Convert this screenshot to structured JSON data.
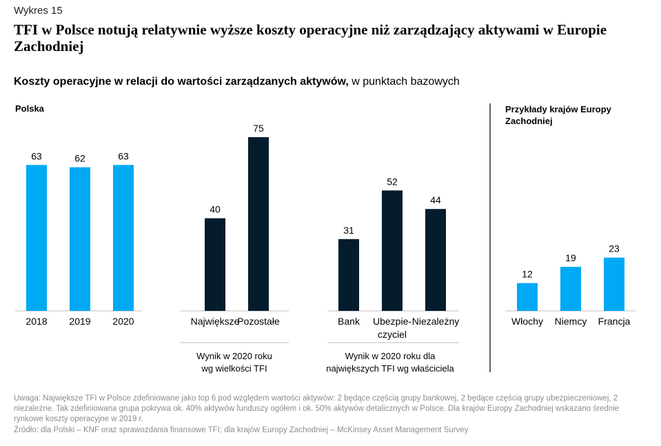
{
  "figure_label": "Wykres 15",
  "title": "TFI w Polsce notują relatywnie wyższe koszty operacyjne niż zarządzający aktywami w Europie Zachodniej",
  "subtitle_bold": "Koszty operacyjne w relacji do wartości zarządzanych aktywów,",
  "subtitle_regular": " w punktach bazowych",
  "colors": {
    "blue": "#00A9F4",
    "navy": "#051C2C",
    "gray": "#BFBFBF",
    "black": "#000000"
  },
  "chart_data": {
    "type": "bar",
    "ylabel": "",
    "ylim": [
      0,
      75
    ],
    "groups": [
      {
        "heading": "Polska",
        "caption": "",
        "color": "#00A9F4",
        "categories": [
          "2018",
          "2019",
          "2020"
        ],
        "values": [
          63,
          62,
          63
        ]
      },
      {
        "heading": "",
        "caption": "Wynik w 2020 roku\nwg wielkości TFI",
        "color": "#051C2C",
        "categories": [
          "Największe",
          "Pozostałe"
        ],
        "values": [
          40,
          75
        ]
      },
      {
        "heading": "",
        "caption": "Wynik w 2020 roku dla\nnajwiększych TFI wg właściciela",
        "color": "#051C2C",
        "categories": [
          "Bank",
          "Ubezpie-\nczyciel",
          "Niezależny"
        ],
        "values": [
          31,
          52,
          44
        ]
      },
      {
        "heading": "Przykłady krajów Europy\nZachodniej",
        "caption": "",
        "color": "#00A9F4",
        "categories": [
          "Włochy",
          "Niemcy",
          "Francja"
        ],
        "values": [
          12,
          19,
          23
        ]
      }
    ]
  },
  "note": "Uwaga: Największe TFI w Polsce zdefiniowane jako top 6 pod względem wartości aktywów: 2 będące częścią grupy bankowej, 2 będące częścią grupy ubezpieczeniowej, 2 niezależne. Tak zdefiniowana grupa pokrywa ok. 40% aktywów funduszy ogółem i ok. 50% aktywów detalicznych w Polsce. Dla krajów Europy Zachodniej wskazano średnie rynkowe koszty operacyjne w 2019 r.",
  "source": "Źródło: dla Polski – KNF oraz sprawozdania finansowe TFI; dla krajów Europy Zachodniej – McKinsey Asset Management Survey"
}
